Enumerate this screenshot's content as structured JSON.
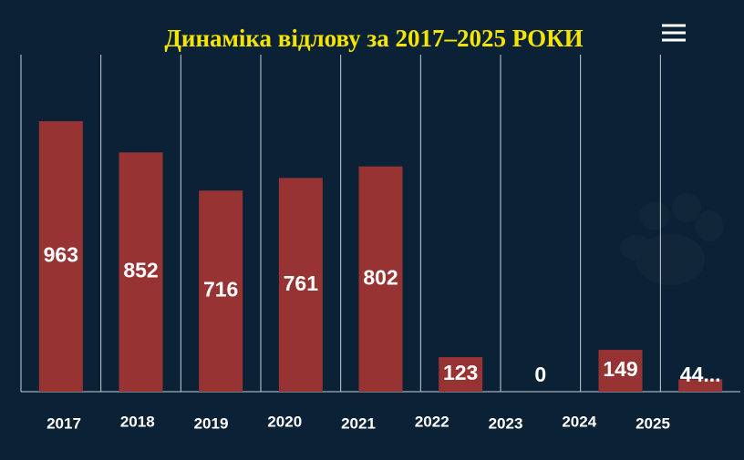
{
  "chart_data": {
    "type": "bar",
    "title": "Динаміка відлову за 2017–2025 РОКИ",
    "categories": [
      "2017",
      "2018",
      "2019",
      "2020",
      "2021",
      "2022",
      "2023",
      "2024",
      "2025"
    ],
    "values": [
      963,
      852,
      716,
      761,
      802,
      123,
      0,
      149,
      44
    ],
    "value_labels": [
      "963",
      "852",
      "716",
      "761",
      "802",
      "123",
      "0",
      "149",
      "44..."
    ],
    "color": "#973333",
    "ylim": [
      0,
      1200
    ]
  }
}
